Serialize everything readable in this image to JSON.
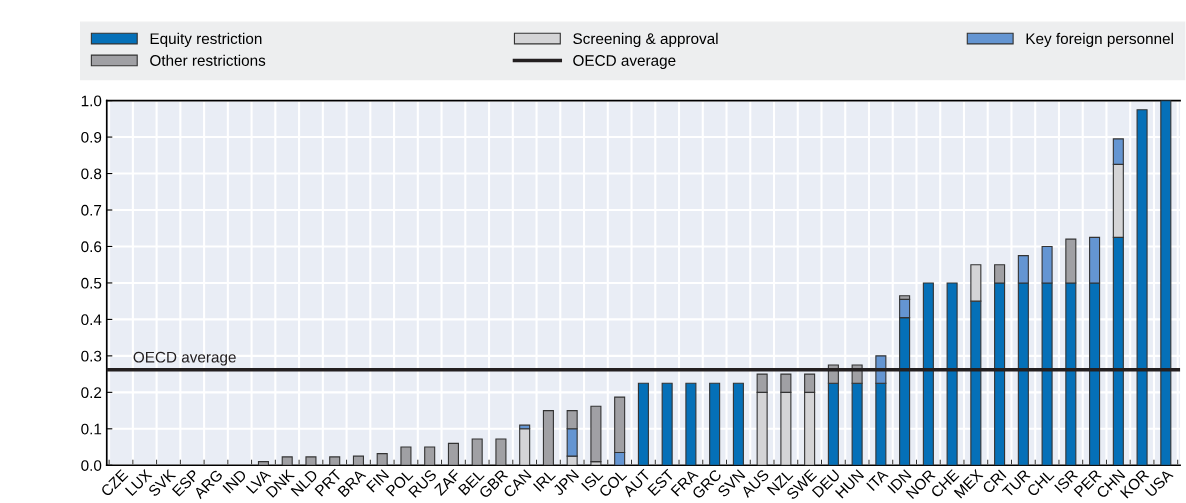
{
  "chart_data": {
    "type": "bar",
    "stacked": true,
    "categories": [
      "CZE",
      "LUX",
      "SVK",
      "ESP",
      "ARG",
      "IND",
      "LVA",
      "DNK",
      "NLD",
      "PRT",
      "BRA",
      "FIN",
      "POL",
      "RUS",
      "ZAF",
      "BEL",
      "GBR",
      "CAN",
      "IRL",
      "JPN",
      "ISL",
      "COL",
      "AUT",
      "EST",
      "FRA",
      "GRC",
      "SVN",
      "AUS",
      "NZL",
      "SWE",
      "DEU",
      "HUN",
      "ITA",
      "IDN",
      "NOR",
      "CHE",
      "MEX",
      "CRI",
      "TUR",
      "CHL",
      "ISR",
      "PER",
      "CHN",
      "KOR",
      "USA"
    ],
    "series": [
      {
        "name": "Equity restriction",
        "color": "#0570b8",
        "values": [
          0,
          0,
          0,
          0,
          0,
          0,
          0,
          0,
          0,
          0,
          0,
          0,
          0,
          0,
          0,
          0,
          0,
          0,
          0,
          0,
          0,
          0,
          0.225,
          0.225,
          0.225,
          0.225,
          0.225,
          0,
          0,
          0,
          0.225,
          0.225,
          0.225,
          0.405,
          0.5,
          0.5,
          0.45,
          0.5,
          0.5,
          0.5,
          0.5,
          0.5,
          0.625,
          0.975,
          1.0
        ]
      },
      {
        "name": "Screening & approval",
        "color": "#d4d4d6",
        "values": [
          0,
          0,
          0,
          0,
          0,
          0,
          0,
          0,
          0,
          0,
          0,
          0,
          0,
          0,
          0,
          0,
          0,
          0.1,
          0,
          0.025,
          0.01,
          0,
          0,
          0,
          0,
          0,
          0,
          0.2,
          0.2,
          0.2,
          0,
          0,
          0,
          0,
          0,
          0,
          0.1,
          0,
          0,
          0,
          0,
          0,
          0.2,
          0,
          0
        ]
      },
      {
        "name": "Key foreign personnel",
        "color": "#6495d2",
        "values": [
          0,
          0,
          0,
          0,
          0,
          0,
          0,
          0,
          0,
          0,
          0,
          0,
          0,
          0,
          0,
          0,
          0,
          0.01,
          0,
          0.075,
          0,
          0.035,
          0,
          0,
          0,
          0,
          0,
          0,
          0,
          0,
          0,
          0,
          0.075,
          0.05,
          0,
          0,
          0,
          0,
          0.075,
          0.1,
          0,
          0.125,
          0.07,
          0,
          0
        ]
      },
      {
        "name": "Other restrictions",
        "color": "#a0a0a4",
        "values": [
          0,
          0,
          0,
          0,
          0,
          0,
          0.01,
          0.023,
          0.023,
          0.023,
          0.025,
          0.032,
          0.05,
          0.05,
          0.06,
          0.072,
          0.072,
          0,
          0.15,
          0.05,
          0.152,
          0.152,
          0,
          0,
          0,
          0,
          0,
          0.05,
          0.05,
          0.05,
          0.05,
          0.05,
          0,
          0.01,
          0,
          0,
          0,
          0.05,
          0,
          0,
          0.12,
          0,
          0,
          0,
          0
        ]
      }
    ],
    "ref_lines": [
      {
        "axis": "y",
        "value": 0.262,
        "label": "OECD average",
        "color": "#231f20"
      }
    ],
    "ylim": [
      0,
      1.0
    ],
    "yticks": [
      {
        "value": 0,
        "label": "0.0"
      },
      0.1,
      0.2,
      0.3,
      0.4,
      0.5,
      0.6,
      0.7,
      0.8,
      0.9,
      {
        "value": 1.0,
        "label": "1.0"
      }
    ],
    "grid": true,
    "legend": "top"
  }
}
